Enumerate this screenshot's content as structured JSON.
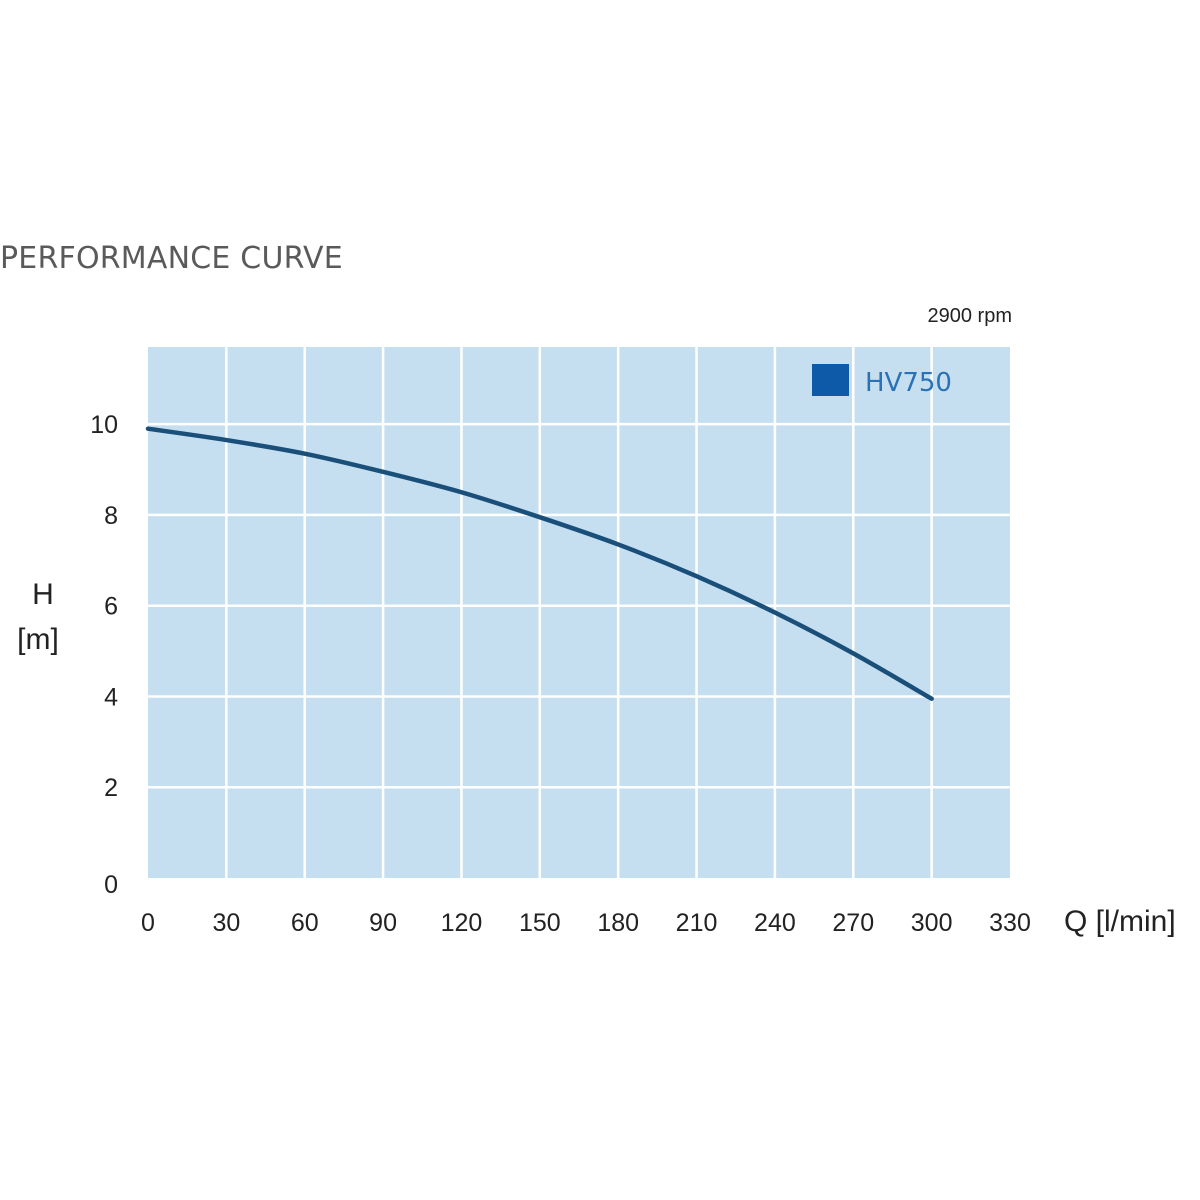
{
  "chart_data": {
    "type": "line",
    "title": "PERFORMANCE CURVE",
    "annotation": "2900 rpm",
    "xlabel": "Q [l/min]",
    "ylabel_line1": "H",
    "ylabel_line2": "[m]",
    "xlim": [
      0,
      330
    ],
    "ylim": [
      0,
      11.7
    ],
    "x_ticks": [
      0,
      30,
      60,
      90,
      120,
      150,
      180,
      210,
      240,
      270,
      300,
      330
    ],
    "y_ticks": [
      0,
      2,
      4,
      6,
      8,
      10
    ],
    "grid": true,
    "legend_position": "top-right",
    "colors": {
      "plot_background": "#c5dff0",
      "grid": "#ffffff",
      "series_line": "#1a4f7a",
      "legend_swatch": "#0e5aa8",
      "legend_text": "#2a72b5"
    },
    "series": [
      {
        "name": "HV750",
        "x": [
          0,
          30,
          60,
          90,
          120,
          150,
          180,
          210,
          240,
          270,
          300
        ],
        "y": [
          9.9,
          9.65,
          9.35,
          8.95,
          8.5,
          7.95,
          7.35,
          6.65,
          5.85,
          4.95,
          3.95
        ]
      }
    ]
  }
}
